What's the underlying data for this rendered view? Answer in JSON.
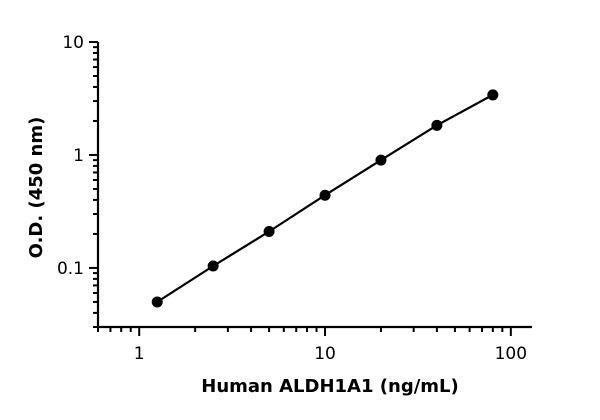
{
  "chart_data": {
    "type": "scatter",
    "title": "",
    "xlabel": "Human ALDH1A1 (ng/mL)",
    "ylabel": "O.D. (450 nm)",
    "x_scale": "log",
    "y_scale": "log",
    "xlim": [
      0.6,
      130
    ],
    "ylim": [
      0.03,
      10
    ],
    "x_ticks": [
      1,
      10,
      100
    ],
    "x_tick_labels": [
      "1",
      "10",
      "100"
    ],
    "y_ticks": [
      0.1,
      1,
      10
    ],
    "y_tick_labels": [
      "0.1",
      "1",
      "10"
    ],
    "grid": false,
    "legend": "none",
    "colors": {
      "points": "#000000",
      "line": "#000000"
    },
    "series": [
      {
        "x": [
          1.25,
          2.5,
          5,
          10,
          20,
          40,
          80
        ],
        "y": [
          0.05,
          0.104,
          0.21,
          0.44,
          0.9,
          1.83,
          3.4
        ]
      }
    ]
  }
}
